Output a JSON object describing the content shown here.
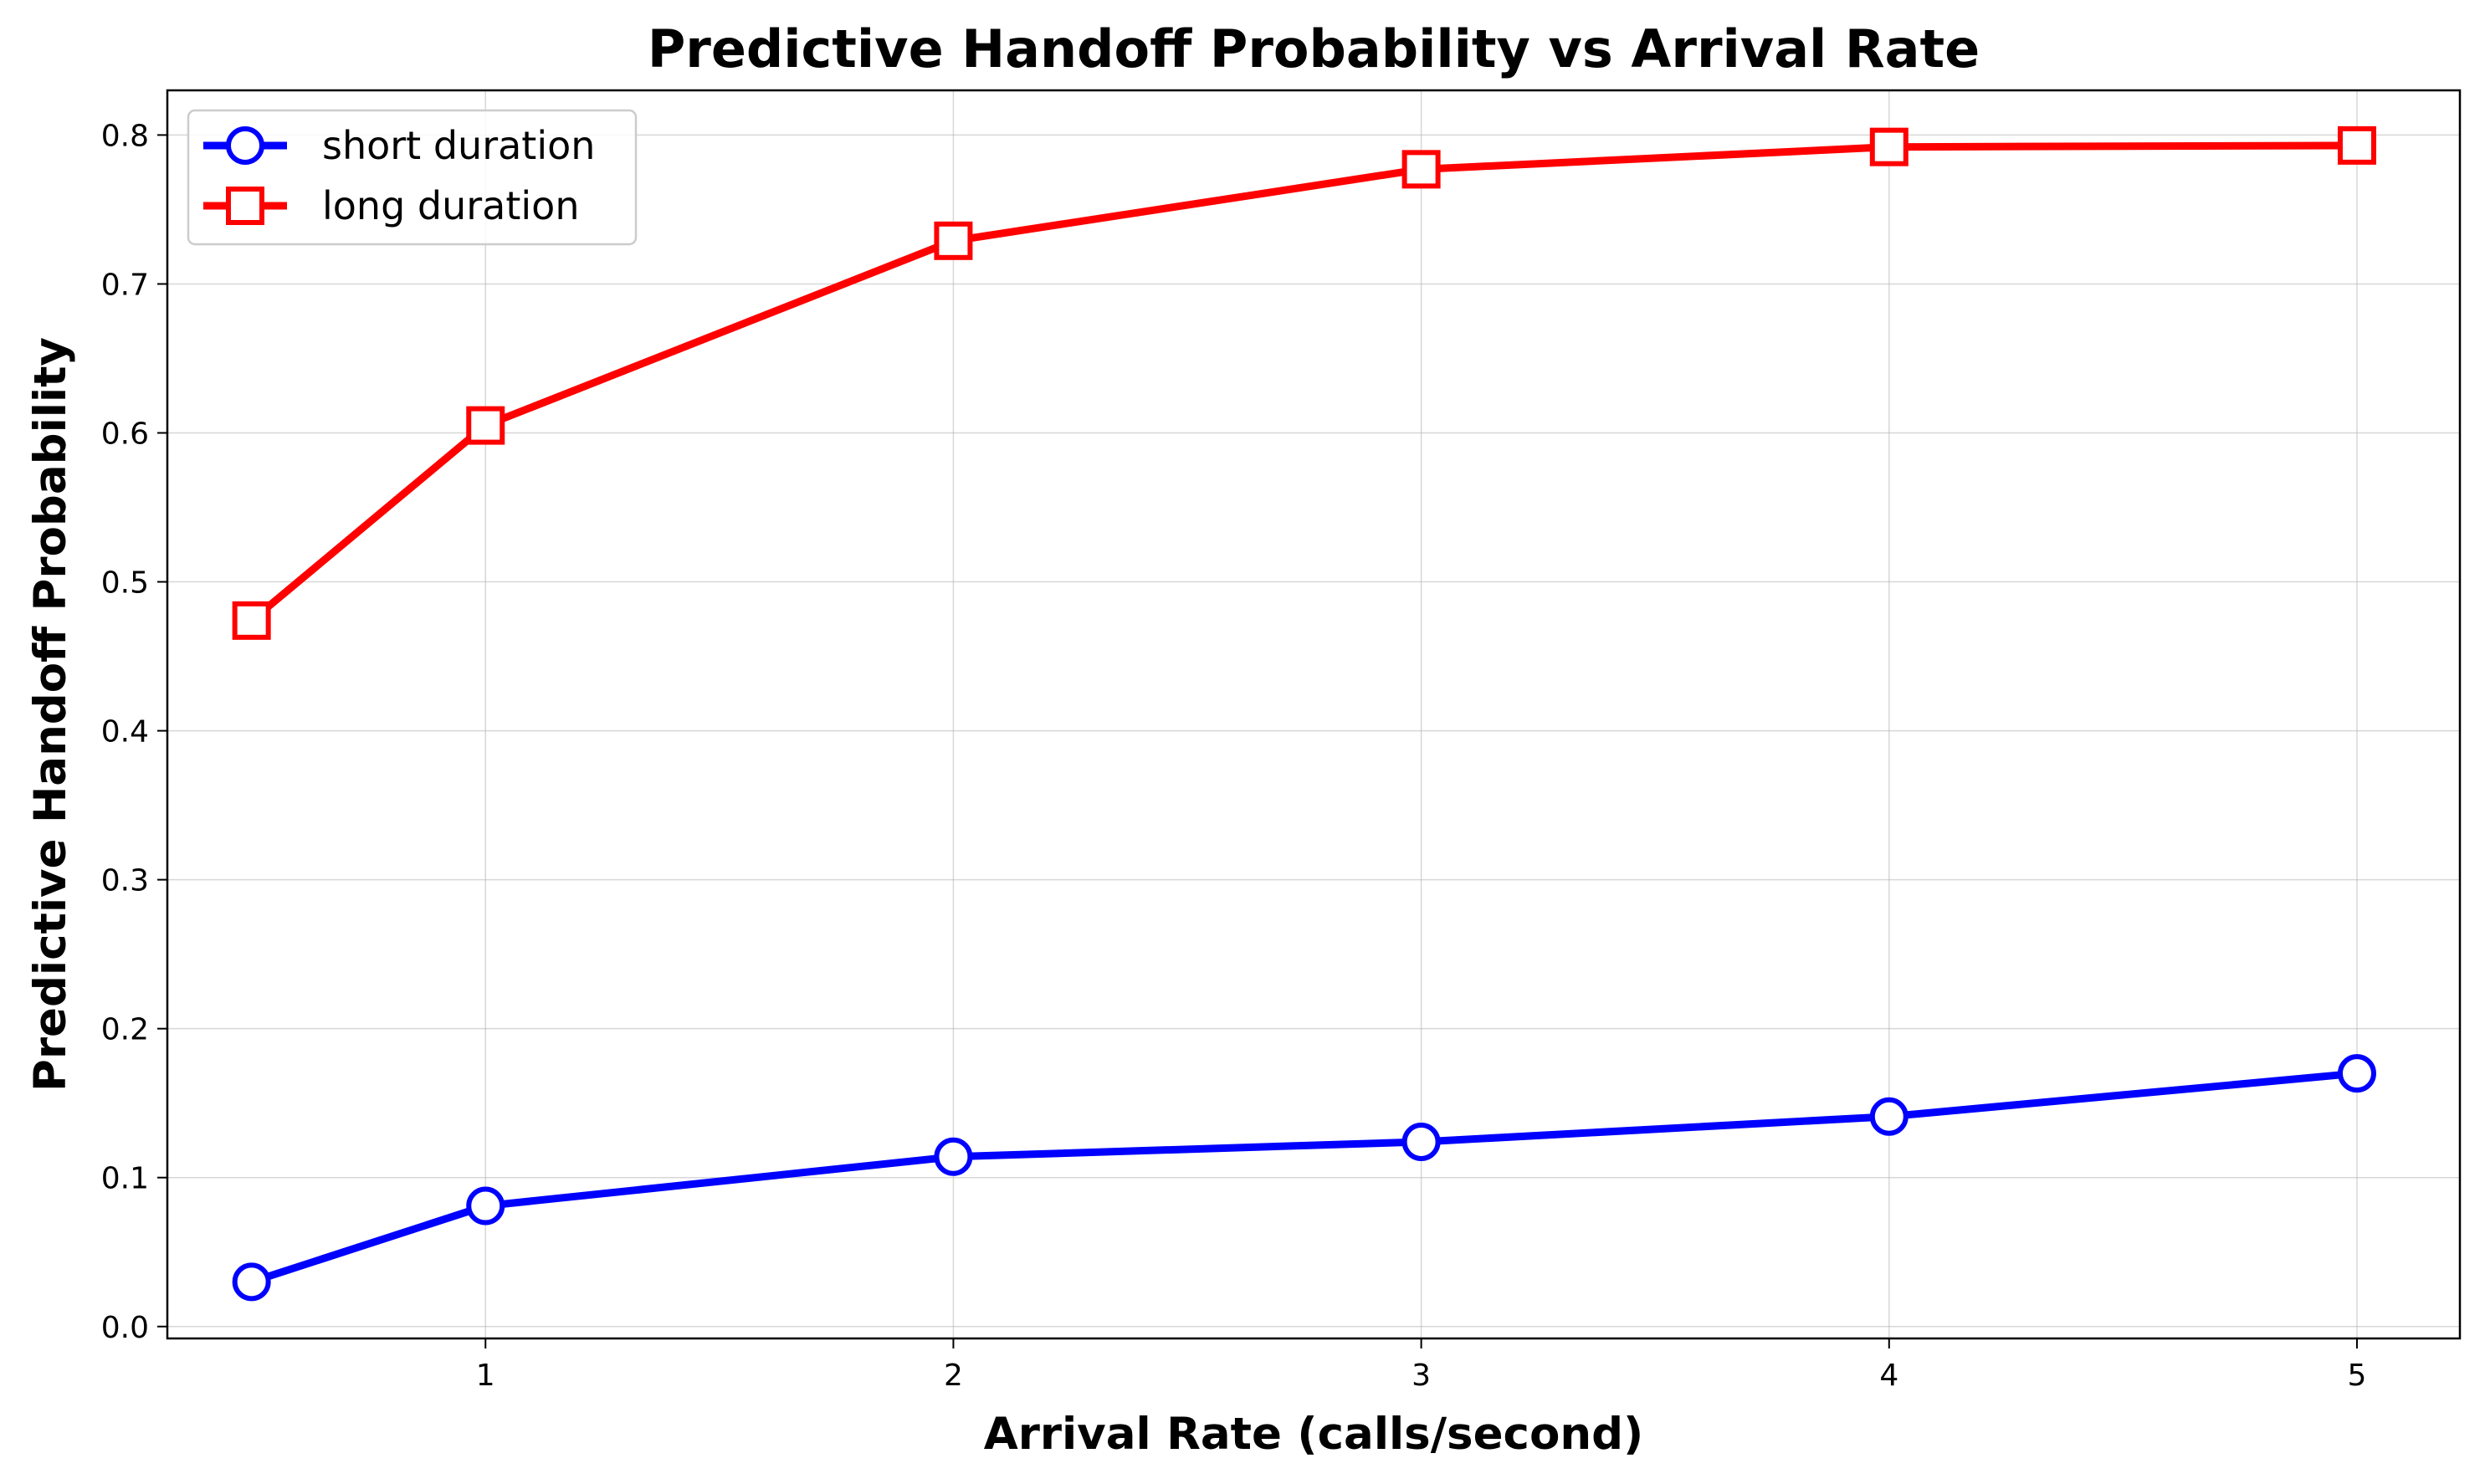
{
  "chart_data": {
    "type": "line",
    "title": "Predictive Handoff Probability vs Arrival Rate",
    "xlabel": "Arrival Rate (calls/second)",
    "ylabel": "Predictive Handoff Probability",
    "xlim": [
      0.32,
      5.22
    ],
    "ylim": [
      -0.008,
      0.83
    ],
    "xticks": [
      1,
      2,
      3,
      4,
      5
    ],
    "yticks": [
      0.0,
      0.1,
      0.2,
      0.3,
      0.4,
      0.5,
      0.6,
      0.7,
      0.8
    ],
    "grid": true,
    "legend_position": "top-left",
    "x": [
      0.5,
      1,
      2,
      3,
      4,
      5
    ],
    "series": [
      {
        "name": "short duration",
        "values": [
          0.03,
          0.081,
          0.114,
          0.124,
          0.141,
          0.17
        ],
        "color": "#0000ff",
        "marker": "circle"
      },
      {
        "name": "long duration",
        "values": [
          0.474,
          0.605,
          0.729,
          0.777,
          0.792,
          0.793
        ],
        "color": "#ff0000",
        "marker": "square"
      }
    ]
  }
}
